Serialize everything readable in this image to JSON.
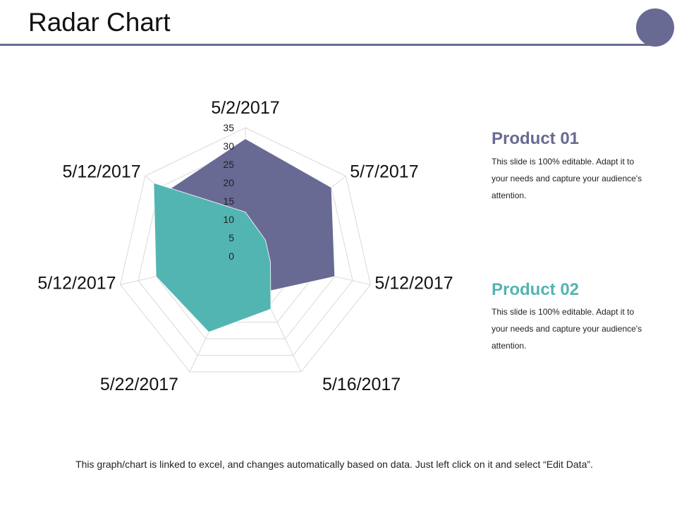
{
  "slide": {
    "title": "Radar Chart",
    "footer": "This graph/chart is linked to excel, and changes automatically based on data. Just left click on it and select “Edit Data”."
  },
  "legend": [
    {
      "title": "Product 01",
      "text": "This slide is 100% editable. Adapt it to your needs and capture your audience's attention.",
      "color": "#686a94"
    },
    {
      "title": "Product 02",
      "text": "This slide is 100% editable. Adapt it to your needs and capture your audience's attention.",
      "color": "#53b5b2"
    }
  ],
  "chart_data": {
    "type": "radar",
    "categories": [
      "5/2/2017",
      "5/7/2017",
      "5/12/2017",
      "5/16/2017",
      "5/22/2017",
      "5/12/2017",
      "5/12/2017"
    ],
    "radial_ticks": [
      0,
      5,
      10,
      15,
      20,
      25,
      30,
      35
    ],
    "rlim": [
      0,
      35
    ],
    "grid": true,
    "series": [
      {
        "name": "Product 01",
        "color": "#686a94",
        "values": [
          32,
          30,
          25,
          11,
          8,
          5,
          28
        ]
      },
      {
        "name": "Product 02",
        "color": "#53b5b2",
        "values": [
          12,
          7,
          7,
          16,
          23,
          25,
          32
        ]
      }
    ]
  }
}
